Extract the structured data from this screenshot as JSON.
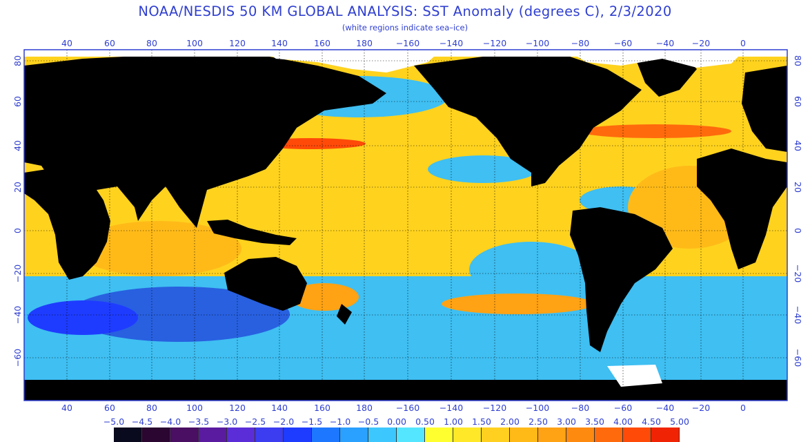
{
  "title": "NOAA/NESDIS 50 KM GLOBAL ANALYSIS: SST Anomaly (degrees C), 2/3/2020",
  "subtitle": "(white regions indicate sea–ice)",
  "lon_labels": [
    "40",
    "60",
    "80",
    "100",
    "120",
    "140",
    "160",
    "180",
    "−160",
    "−140",
    "−120",
    "−100",
    "−80",
    "−60",
    "−40",
    "−20",
    "0"
  ],
  "lat_labels_left": [
    "80",
    "60",
    "40",
    "20",
    "0",
    "−20",
    "−40",
    "−60"
  ],
  "lat_labels_right": [
    "80",
    "60",
    "40",
    "20",
    "0",
    "−20",
    "−40",
    "−60"
  ],
  "colorbar": {
    "labels": [
      "−5.0",
      "−4.5",
      "−4.0",
      "−3.5",
      "−3.0",
      "−2.5",
      "−2.0",
      "−1.5",
      "−1.0",
      "−0.5",
      "0.00",
      "0.50",
      "1.00",
      "1.50",
      "2.00",
      "2.50",
      "3.00",
      "3.50",
      "4.00",
      "4.50",
      "5.00"
    ],
    "colors": [
      "#0a0a1e",
      "#2a0630",
      "#4a0e62",
      "#5a1ba0",
      "#5a2dd8",
      "#3c3cf0",
      "#1e3cff",
      "#1e78ff",
      "#2aa0ff",
      "#3cc8ff",
      "#55e6ff",
      "#ffff30",
      "#ffe828",
      "#ffd020",
      "#ffba18",
      "#ffa214",
      "#ff8a10",
      "#ff6a0c",
      "#ff4a08",
      "#f02404"
    ]
  },
  "colors": {
    "ocean_warm": "#ffd21e",
    "ocean_cool": "#3fbff2",
    "land": "#000000",
    "ice": "#ffffff",
    "label": "#2f3fd0"
  }
}
